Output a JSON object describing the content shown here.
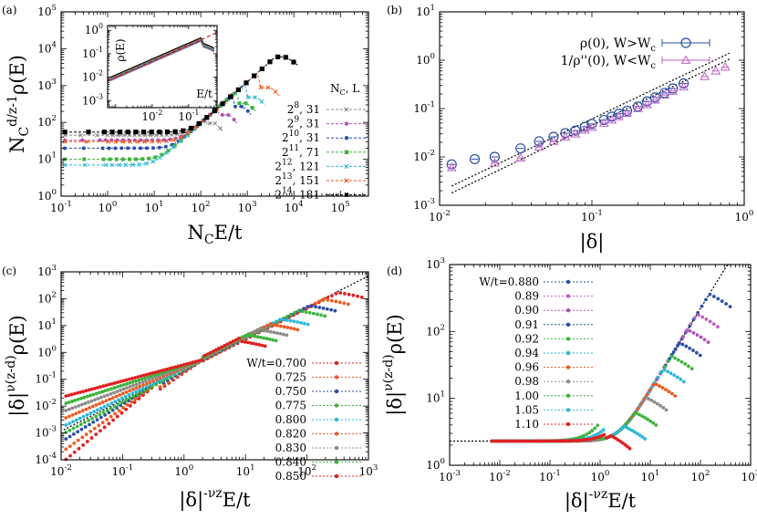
{
  "figure": {
    "title": ""
  },
  "chart_data": [
    {
      "panel": "(a)",
      "type": "scatter",
      "xscale": "log",
      "yscale": "log",
      "xlim": [
        0.1,
        400000
      ],
      "ylim": [
        1,
        100000
      ],
      "xlabel": {
        "base": "N",
        "sub": "C",
        "rest": "E/t"
      },
      "ylabel": {
        "base": "N",
        "sub": "C",
        "sup": "d/z-1",
        "rest": "ρ(E)"
      },
      "x_ticks": [
        {
          "v": 0.1,
          "e": "-1"
        },
        {
          "v": 1,
          "e": "0"
        },
        {
          "v": 10,
          "e": "1"
        },
        {
          "v": 100,
          "e": "2"
        },
        {
          "v": 1000,
          "e": "3"
        },
        {
          "v": 10000,
          "e": "4"
        },
        {
          "v": 100000,
          "e": "5"
        }
      ],
      "y_ticks": [
        {
          "v": 1,
          "e": "0"
        },
        {
          "v": 10,
          "e": "1"
        },
        {
          "v": 100,
          "e": "2"
        },
        {
          "v": 1000,
          "e": "3"
        },
        {
          "v": 10000,
          "e": "4"
        },
        {
          "v": 100000,
          "e": "5"
        }
      ],
      "legend_title": "N_C, L",
      "legend_position": "right",
      "series": [
        {
          "name_exp": "8",
          "name_L": ", 31",
          "color": "#8c8c8c",
          "plateau": 45,
          "xpeak": 200,
          "ypeak": 95,
          "xend": 300
        },
        {
          "name_exp": "9",
          "name_L": ", 31",
          "color": "#b050b8",
          "plateau": 33,
          "xpeak": 400,
          "ypeak": 160,
          "xend": 600
        },
        {
          "name_exp": "10",
          "name_L": ", 31",
          "color": "#2a4fa8",
          "plateau": 20,
          "xpeak": 800,
          "ypeak": 270,
          "xend": 1200
        },
        {
          "name_exp": "11",
          "name_L": ", 71",
          "color": "#3cb43c",
          "plateau": 10,
          "xpeak": 1000,
          "ypeak": 330,
          "xend": 1500
        },
        {
          "name_exp": "12",
          "name_L": ", 121",
          "color": "#2ab8d8",
          "plateau": 7,
          "xpeak": 1600,
          "ypeak": 480,
          "xend": 2400
        },
        {
          "name_exp": "13",
          "name_L": ", 151",
          "color": "#f05a1e",
          "plateau": 30,
          "xpeak": 3200,
          "ypeak": 880,
          "xend": 4800
        },
        {
          "name_exp": "14",
          "name_L": ", 181",
          "color": "#000000",
          "plateau": 55,
          "xpeak": 6400,
          "ypeak": 6000,
          "xend": 12000
        }
      ],
      "inset": {
        "xlim": [
          0.0006,
          0.6
        ],
        "ylim": [
          0.0005,
          1.6
        ],
        "xlabel": "E/t",
        "ylabel": "ρ(E)",
        "x_ticks": [
          {
            "v": 0.01,
            "e": "-2"
          },
          {
            "v": 0.1,
            "e": "-1"
          }
        ],
        "y_ticks": [
          {
            "v": 0.001,
            "e": "-3"
          },
          {
            "v": 0.01,
            "e": "-2"
          },
          {
            "v": 0.1,
            "e": "-1"
          },
          {
            "v": 1,
            "e": "0"
          }
        ],
        "fit_line": {
          "x": [
            0.0006,
            0.6
          ],
          "y": [
            0.007,
            0.8
          ],
          "color": "#e00000",
          "style": "dashed"
        }
      }
    },
    {
      "panel": "(b)",
      "type": "scatter",
      "xscale": "log",
      "yscale": "log",
      "xlim": [
        0.01,
        1
      ],
      "ylim": [
        0.001,
        10
      ],
      "xlabel": "|δ|",
      "x_ticks": [
        {
          "v": 0.01,
          "e": "-2"
        },
        {
          "v": 0.1,
          "e": "-1"
        },
        {
          "v": 1,
          "e": "0"
        }
      ],
      "y_ticks": [
        {
          "v": 0.001,
          "e": "-3"
        },
        {
          "v": 0.01,
          "e": "-2"
        },
        {
          "v": 0.1,
          "e": "-1"
        },
        {
          "v": 1,
          "e": "0"
        },
        {
          "v": 10,
          "e": "1"
        }
      ],
      "series": [
        {
          "name": "ρ(0), W>W",
          "name_sub": "c",
          "marker": "circle",
          "color": "#2a4fa8",
          "x": [
            0.012,
            0.017,
            0.023,
            0.034,
            0.045,
            0.056,
            0.067,
            0.078,
            0.09,
            0.1,
            0.12,
            0.135,
            0.15,
            0.17,
            0.2,
            0.23,
            0.26,
            0.3,
            0.34,
            0.4
          ],
          "y": [
            0.007,
            0.009,
            0.01,
            0.015,
            0.021,
            0.026,
            0.031,
            0.035,
            0.042,
            0.048,
            0.058,
            0.068,
            0.078,
            0.09,
            0.11,
            0.14,
            0.17,
            0.21,
            0.26,
            0.33
          ]
        },
        {
          "name": "1/ρ''(0), W<W",
          "name_sub": "c",
          "marker": "triangle",
          "color": "#c060c8",
          "x": [
            0.012,
            0.023,
            0.034,
            0.045,
            0.056,
            0.067,
            0.078,
            0.09,
            0.1,
            0.12,
            0.135,
            0.15,
            0.17,
            0.2,
            0.23,
            0.26,
            0.3,
            0.34,
            0.4,
            0.55,
            0.65,
            0.75
          ],
          "y": [
            0.006,
            0.0075,
            0.0095,
            0.016,
            0.021,
            0.026,
            0.03,
            0.036,
            0.041,
            0.05,
            0.058,
            0.068,
            0.08,
            0.1,
            0.12,
            0.15,
            0.19,
            0.23,
            0.28,
            0.46,
            0.6,
            0.72
          ]
        }
      ],
      "fit_lines": [
        {
          "x": [
            0.012,
            0.8
          ],
          "y": [
            0.0025,
            1.4
          ],
          "style": "dotted"
        },
        {
          "x": [
            0.012,
            0.8
          ],
          "y": [
            0.0018,
            1.05
          ],
          "style": "dotted"
        }
      ],
      "legend_position": "top-right"
    },
    {
      "panel": "(c)",
      "type": "scatter",
      "xscale": "log",
      "yscale": "log",
      "xlim": [
        0.01,
        1000
      ],
      "ylim": [
        0.0001,
        1000
      ],
      "xlabel": {
        "base": "|δ|",
        "sup": "-νz",
        "rest": "E/t"
      },
      "ylabel": {
        "base": "|δ|",
        "sup": "ν(z-d)",
        "rest": "ρ(E)"
      },
      "x_ticks": [
        {
          "v": 0.01,
          "e": "-2"
        },
        {
          "v": 0.1,
          "e": "-1"
        },
        {
          "v": 1,
          "e": "0"
        },
        {
          "v": 10,
          "e": "1"
        },
        {
          "v": 100,
          "e": "2"
        },
        {
          "v": 1000,
          "e": "3"
        }
      ],
      "y_ticks": [
        {
          "v": 0.0001,
          "e": "-4"
        },
        {
          "v": 0.001,
          "e": "-3"
        },
        {
          "v": 0.01,
          "e": "-2"
        },
        {
          "v": 0.1,
          "e": "-1"
        },
        {
          "v": 1,
          "e": "0"
        },
        {
          "v": 10,
          "e": "1"
        },
        {
          "v": 100,
          "e": "2"
        },
        {
          "v": 1000,
          "e": "3"
        }
      ],
      "fit_line": {
        "x": [
          0.011,
          1000
        ],
        "y": [
          0.0013,
          700
        ],
        "style": "dotted"
      },
      "legend_title_prefix": "W/t=",
      "legend_position": "bottom-right",
      "series": [
        {
          "name": "0.700",
          "color": "#e02020",
          "s": 1.0,
          "xp": 300
        },
        {
          "name": "0.725",
          "color": "#f05a1e",
          "s": 0.9,
          "xp": 180
        },
        {
          "name": "0.750",
          "color": "#2a4fa8",
          "s": 0.8,
          "xp": 110
        },
        {
          "name": "0.775",
          "color": "#3cb43c",
          "s": 0.75,
          "xp": 75
        },
        {
          "name": "0.800",
          "color": "#2ab8d8",
          "s": 0.7,
          "xp": 40
        },
        {
          "name": "0.820",
          "color": "#f05a1e",
          "s": 0.65,
          "xp": 27
        },
        {
          "name": "0.830",
          "color": "#8c8c8c",
          "s": 0.55,
          "xp": 18
        },
        {
          "name": "0.840",
          "color": "#3cb43c",
          "s": 0.5,
          "xp": 12
        },
        {
          "name": "0.850",
          "color": "#e02020",
          "s": 0.45,
          "xp": 8
        }
      ]
    },
    {
      "panel": "(d)",
      "type": "scatter",
      "xscale": "log",
      "yscale": "log",
      "xlim": [
        0.001,
        1000
      ],
      "ylim": [
        1,
        1000
      ],
      "xlabel": {
        "base": "|δ|",
        "sup": "-νz",
        "rest": "E/t"
      },
      "ylabel": {
        "base": "|δ|",
        "sup": "ν(z-d)",
        "rest": "ρ(E)"
      },
      "x_ticks": [
        {
          "v": 0.001,
          "e": "-3"
        },
        {
          "v": 0.01,
          "e": "-2"
        },
        {
          "v": 0.1,
          "e": "-1"
        },
        {
          "v": 1,
          "e": "0"
        },
        {
          "v": 10,
          "e": "1"
        },
        {
          "v": 100,
          "e": "2"
        },
        {
          "v": 1000,
          "e": "3"
        }
      ],
      "y_ticks": [
        {
          "v": 1,
          "e": "0"
        },
        {
          "v": 10,
          "e": "1"
        },
        {
          "v": 100,
          "e": "2"
        },
        {
          "v": 1000,
          "e": "3"
        }
      ],
      "plateau": 2.3,
      "legend_position": "top-left",
      "series": [
        {
          "name": "W/t=0.880",
          "color": "#2a4fa8",
          "xp": 150
        },
        {
          "name": "0.89",
          "color": "#c060c8",
          "xp": 85
        },
        {
          "name": "0.90",
          "color": "#b050b8",
          "xp": 55
        },
        {
          "name": "0.91",
          "color": "#2a4fa8",
          "xp": 38
        },
        {
          "name": "0.92",
          "color": "#3cb43c",
          "xp": 26
        },
        {
          "name": "0.94",
          "color": "#2ab8d8",
          "xp": 18
        },
        {
          "name": "0.96",
          "color": "#f05a1e",
          "xp": 12
        },
        {
          "name": "0.98",
          "color": "#8c8c8c",
          "xp": 8
        },
        {
          "name": "1.00",
          "color": "#3cb43c",
          "xp": 5
        },
        {
          "name": "1.05",
          "color": "#2ab8d8",
          "xp": 3
        },
        {
          "name": "1.10",
          "color": "#e02020",
          "xp": 1.5
        }
      ]
    }
  ]
}
